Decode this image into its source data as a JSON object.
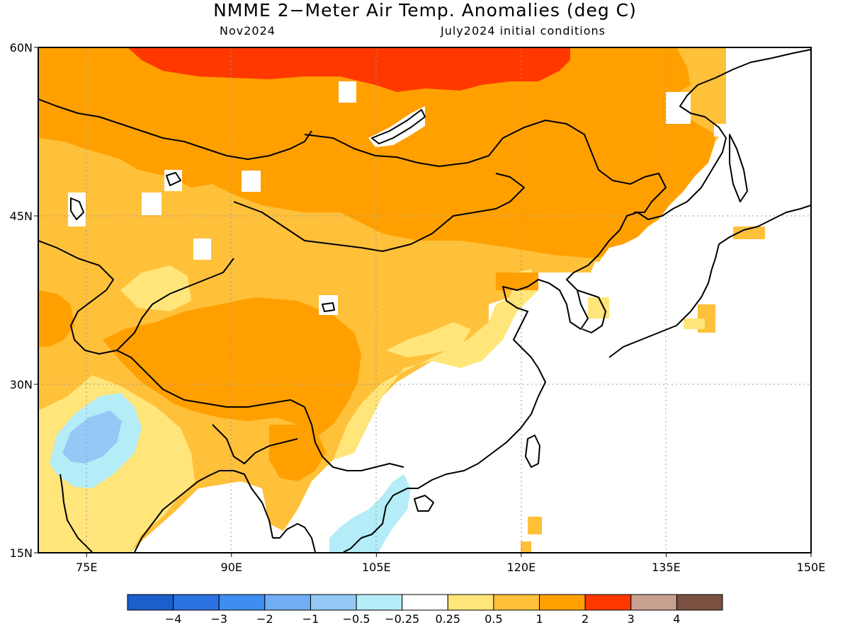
{
  "title": "NMME 2−Meter Air Temp. Anomalies (deg C)",
  "subtitle_left": "Nov2024",
  "subtitle_right": "July2024 initial conditions",
  "lat_ticks": [
    {
      "value": 60,
      "label": "60N"
    },
    {
      "value": 45,
      "label": "45N"
    },
    {
      "value": 30,
      "label": "30N"
    },
    {
      "value": 15,
      "label": "15N"
    }
  ],
  "lon_ticks": [
    {
      "value": 75,
      "label": "75E"
    },
    {
      "value": 90,
      "label": "90E"
    },
    {
      "value": 105,
      "label": "105E"
    },
    {
      "value": 120,
      "label": "120E"
    },
    {
      "value": 135,
      "label": "135E"
    },
    {
      "value": 150,
      "label": "150E"
    }
  ],
  "extent": {
    "lon": [
      70,
      150
    ],
    "lat": [
      15,
      60
    ]
  },
  "colorbar": {
    "colors": [
      "#1a5fcc",
      "#2a72e0",
      "#3d8ef0",
      "#70aef5",
      "#94c8f5",
      "#b4ecf7",
      "#ffffff",
      "#ffe57a",
      "#ffc03a",
      "#ffa000",
      "#ff3800",
      "#c8a090",
      "#7a5040"
    ],
    "labels": [
      "−4",
      "−3",
      "−2",
      "−1",
      "−0.5",
      "−0.25",
      "0.25",
      "0.5",
      "1",
      "2",
      "3",
      "4"
    ]
  }
}
